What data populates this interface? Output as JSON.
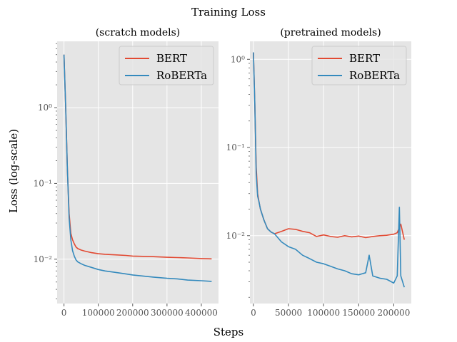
{
  "figure": {
    "suptitle": "Training Loss",
    "xlabel": "Steps",
    "ylabel": "Loss (log-scale)"
  },
  "colors": {
    "axes_background": "#e5e5e5",
    "grid": "#ffffff",
    "tick_label": "#555555",
    "BERT": "#e24a33",
    "RoBERTa": "#348abd"
  },
  "chart_data": [
    {
      "type": "line",
      "title": "(scratch models)",
      "x_scale": "linear",
      "y_scale": "log",
      "xlim": [
        -20000,
        450000
      ],
      "ylim": [
        0.0026,
        7.5
      ],
      "xticks": [
        0,
        100000,
        200000,
        300000,
        400000
      ],
      "xtick_labels": [
        "0",
        "100000",
        "200000",
        "300000",
        "400000"
      ],
      "yticks": [
        0.01,
        0.1,
        1
      ],
      "ytick_labels": [
        "10⁻²",
        "10⁻¹",
        "10⁰"
      ],
      "grid": true,
      "legend": "top-right",
      "series": [
        {
          "name": "BERT",
          "x": [
            0,
            5000,
            10000,
            15000,
            20000,
            25000,
            30000,
            35000,
            40000,
            50000,
            60000,
            80000,
            100000,
            120000,
            150000,
            180000,
            200000,
            230000,
            260000,
            300000,
            330000,
            360000,
            400000,
            430000
          ],
          "y": [
            5.0,
            1.0,
            0.15,
            0.04,
            0.022,
            0.018,
            0.016,
            0.0145,
            0.0138,
            0.0132,
            0.0128,
            0.0122,
            0.0118,
            0.0116,
            0.0114,
            0.0112,
            0.011,
            0.0109,
            0.0108,
            0.0106,
            0.0105,
            0.0104,
            0.0102,
            0.0101
          ]
        },
        {
          "name": "RoBERTa",
          "x": [
            0,
            5000,
            10000,
            15000,
            20000,
            25000,
            30000,
            35000,
            40000,
            50000,
            60000,
            80000,
            100000,
            120000,
            150000,
            180000,
            200000,
            230000,
            260000,
            300000,
            330000,
            360000,
            400000,
            430000
          ],
          "y": [
            5.0,
            1.0,
            0.15,
            0.035,
            0.018,
            0.013,
            0.011,
            0.0098,
            0.0092,
            0.0087,
            0.0083,
            0.0078,
            0.0073,
            0.007,
            0.0067,
            0.0064,
            0.0062,
            0.006,
            0.0058,
            0.0056,
            0.0055,
            0.0053,
            0.0052,
            0.0051
          ]
        }
      ]
    },
    {
      "type": "line",
      "title": "(pretrained models)",
      "x_scale": "linear",
      "y_scale": "log",
      "xlim": [
        -5000,
        225000
      ],
      "ylim": [
        0.0017,
        1.6
      ],
      "xticks": [
        0,
        50000,
        100000,
        150000,
        200000
      ],
      "xtick_labels": [
        "0",
        "50000",
        "100000",
        "150000",
        "200000"
      ],
      "yticks": [
        0.01,
        0.1,
        1
      ],
      "ytick_labels": [
        "10⁻²",
        "10⁻¹",
        "10⁰"
      ],
      "grid": true,
      "legend": "top-right",
      "series": [
        {
          "name": "BERT",
          "x": [
            0,
            2000,
            4000,
            6000,
            8000,
            10000,
            15000,
            20000,
            25000,
            30000,
            40000,
            50000,
            60000,
            70000,
            80000,
            90000,
            100000,
            110000,
            120000,
            130000,
            140000,
            150000,
            160000,
            170000,
            180000,
            190000,
            200000,
            205000,
            210000,
            215000
          ],
          "y": [
            1.2,
            0.3,
            0.06,
            0.03,
            0.024,
            0.02,
            0.015,
            0.012,
            0.011,
            0.0105,
            0.0112,
            0.012,
            0.0118,
            0.0112,
            0.0108,
            0.0098,
            0.0102,
            0.0098,
            0.0096,
            0.01,
            0.0097,
            0.0099,
            0.0095,
            0.0098,
            0.01,
            0.0101,
            0.0104,
            0.0108,
            0.0135,
            0.009
          ]
        },
        {
          "name": "RoBERTa",
          "x": [
            0,
            2000,
            4000,
            6000,
            8000,
            10000,
            15000,
            20000,
            25000,
            30000,
            40000,
            50000,
            60000,
            70000,
            80000,
            90000,
            100000,
            110000,
            120000,
            130000,
            140000,
            150000,
            160000,
            165000,
            170000,
            180000,
            190000,
            200000,
            205000,
            208000,
            210000,
            215000
          ],
          "y": [
            1.2,
            0.3,
            0.05,
            0.028,
            0.024,
            0.02,
            0.015,
            0.012,
            0.011,
            0.0105,
            0.0085,
            0.0075,
            0.007,
            0.006,
            0.0055,
            0.005,
            0.0048,
            0.0045,
            0.0042,
            0.004,
            0.0037,
            0.0036,
            0.0038,
            0.006,
            0.0035,
            0.0033,
            0.0032,
            0.0029,
            0.0035,
            0.021,
            0.0035,
            0.0026
          ]
        }
      ]
    }
  ]
}
